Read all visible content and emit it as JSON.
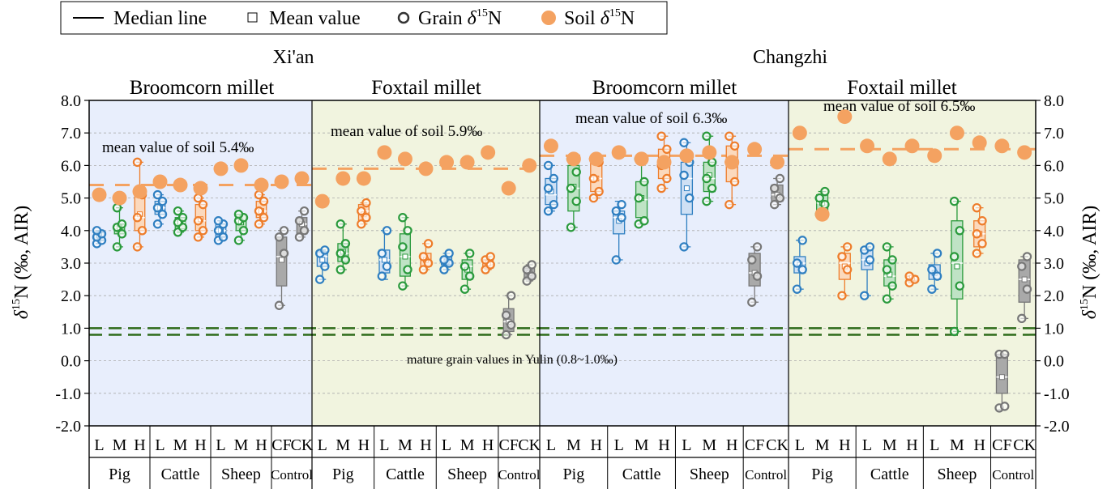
{
  "chart_data": {
    "type": "boxplot",
    "legend": {
      "median": "Median line",
      "mean": "Mean value",
      "grain_prefix": "Grain ",
      "soil_prefix": "Soil ",
      "delta_symbol": "δ",
      "superscript": "15",
      "element": "N"
    },
    "site_labels": [
      "Xi'an",
      "Changzhi"
    ],
    "panel_titles": [
      "Broomcorn millet",
      "Foxtail millet",
      "Broomcorn millet",
      "Foxtail millet"
    ],
    "panel_colors": [
      "#e8eefc",
      "#f1f4df",
      "#e8eefc",
      "#f1f4df"
    ],
    "mean_soil_labels": [
      "mean value of soil 5.4‰",
      "mean value of soil 5.9‰",
      "mean value of soil 6.3‰",
      "mean value of soil 6.5‰"
    ],
    "mean_soil_values": [
      5.4,
      5.9,
      6.3,
      6.5
    ],
    "y_axis": {
      "label_left": "δ15N (‰,  AIR)",
      "label_delta": "δ",
      "label_sup": "15",
      "label_rest": "N (‰,  AIR)",
      "ylim": [
        -2.0,
        8.0
      ],
      "ticks": [
        "8.0",
        "7.0",
        "6.0",
        "5.0",
        "4.0",
        "3.0",
        "2.0",
        "1.0",
        "0.0",
        "-1.0",
        "-2.0"
      ],
      "tick_values": [
        8,
        7,
        6,
        5,
        4,
        3,
        2,
        1,
        0,
        -1,
        -2
      ]
    },
    "yulin_band": [
      0.8,
      1.0
    ],
    "yulin_label": "mature grain values in Yulin (0.8~1.0‰)",
    "level_labels": [
      "L",
      "M",
      "H",
      "L",
      "M",
      "H",
      "L",
      "M",
      "H",
      "CF",
      "CK"
    ],
    "group_labels": [
      "Pig",
      "Cattle",
      "Sheep",
      "Control"
    ],
    "colors": {
      "L": "#2f7fc1",
      "M": "#2a9a3c",
      "H": "#ee7d2b",
      "control": "#777777",
      "soil": "#f4a261",
      "yulin": "#2e6b1a"
    },
    "panels": [
      {
        "name": "Xi'an Broomcorn millet",
        "boxes": [
          {
            "level": "L",
            "q1": 3.7,
            "median": 3.85,
            "q3": 3.95,
            "mean": 3.85,
            "min": 3.6,
            "max": 4.0,
            "points": [
              3.6,
              3.7,
              3.8,
              3.9,
              4.0
            ]
          },
          {
            "level": "M",
            "q1": 3.9,
            "median": 4.1,
            "q3": 4.2,
            "mean": 4.1,
            "min": 3.5,
            "max": 4.7,
            "points": [
              3.5,
              3.9,
              4.1,
              4.2,
              4.7
            ]
          },
          {
            "level": "H",
            "q1": 4.0,
            "median": 4.4,
            "q3": 5.1,
            "mean": 4.5,
            "min": 3.5,
            "max": 6.1,
            "points": [
              3.5,
              4.0,
              4.4,
              5.1,
              6.1
            ]
          },
          {
            "level": "L",
            "q1": 4.5,
            "median": 4.7,
            "q3": 4.9,
            "mean": 4.7,
            "min": 4.2,
            "max": 5.1,
            "points": [
              4.2,
              4.5,
              4.7,
              4.9,
              5.1
            ]
          },
          {
            "level": "M",
            "q1": 4.05,
            "median": 4.25,
            "q3": 4.4,
            "mean": 4.25,
            "min": 3.95,
            "max": 4.6,
            "points": [
              3.95,
              4.1,
              4.25,
              4.4,
              4.6
            ]
          },
          {
            "level": "H",
            "q1": 4.0,
            "median": 4.3,
            "q3": 4.8,
            "mean": 4.35,
            "min": 3.8,
            "max": 5.0,
            "points": [
              3.8,
              4.0,
              4.3,
              4.8,
              5.0
            ]
          },
          {
            "level": "L",
            "q1": 3.8,
            "median": 4.0,
            "q3": 4.2,
            "mean": 4.0,
            "min": 3.7,
            "max": 4.3,
            "points": [
              3.7,
              3.8,
              4.0,
              4.2,
              4.3
            ]
          },
          {
            "level": "M",
            "q1": 4.0,
            "median": 4.3,
            "q3": 4.5,
            "mean": 4.25,
            "min": 3.7,
            "max": 4.5,
            "points": [
              3.7,
              4.0,
              4.3,
              4.4,
              4.5
            ]
          },
          {
            "level": "H",
            "q1": 4.4,
            "median": 4.6,
            "q3": 4.9,
            "mean": 4.6,
            "min": 4.2,
            "max": 5.1,
            "points": [
              4.2,
              4.4,
              4.6,
              4.9,
              5.1
            ]
          },
          {
            "level": "CF",
            "q1": 2.3,
            "median": 3.2,
            "q3": 3.8,
            "mean": 3.1,
            "min": 1.7,
            "max": 4.0,
            "points": [
              1.7,
              3.3,
              3.8,
              4.0
            ]
          },
          {
            "level": "CK",
            "q1": 3.9,
            "median": 4.2,
            "q3": 4.4,
            "mean": 4.2,
            "min": 3.8,
            "max": 4.6,
            "points": [
              3.8,
              4.0,
              4.3,
              4.6
            ]
          }
        ],
        "soil": [
          5.1,
          5.0,
          5.2,
          5.5,
          5.4,
          5.3,
          5.9,
          6.0,
          5.4,
          5.5,
          5.6
        ]
      },
      {
        "name": "Xi'an Foxtail millet",
        "boxes": [
          {
            "level": "L",
            "q1": 2.9,
            "median": 3.2,
            "q3": 3.35,
            "mean": 3.1,
            "min": 2.5,
            "max": 3.4,
            "points": [
              2.5,
              2.9,
              3.3,
              3.4
            ]
          },
          {
            "level": "M",
            "q1": 3.05,
            "median": 3.3,
            "q3": 3.6,
            "mean": 3.35,
            "min": 2.8,
            "max": 4.2,
            "points": [
              2.8,
              3.1,
              3.3,
              3.6,
              4.2
            ]
          },
          {
            "level": "H",
            "q1": 4.3,
            "median": 4.6,
            "q3": 4.8,
            "mean": 4.5,
            "min": 4.2,
            "max": 4.85,
            "points": [
              4.2,
              4.4,
              4.6,
              4.85
            ]
          },
          {
            "level": "L",
            "q1": 2.7,
            "median": 3.1,
            "q3": 3.4,
            "mean": 3.1,
            "min": 2.5,
            "max": 4.0,
            "points": [
              2.6,
              2.9,
              3.3,
              4.0
            ]
          },
          {
            "level": "M",
            "q1": 2.6,
            "median": 3.2,
            "q3": 3.9,
            "mean": 3.2,
            "min": 2.3,
            "max": 4.4,
            "points": [
              2.3,
              2.8,
              3.5,
              4.0,
              4.4
            ]
          },
          {
            "level": "H",
            "q1": 2.9,
            "median": 3.1,
            "q3": 3.3,
            "mean": 3.1,
            "min": 2.8,
            "max": 3.6,
            "points": [
              2.8,
              3.0,
              3.2,
              3.6
            ]
          },
          {
            "level": "L",
            "q1": 2.95,
            "median": 3.1,
            "q3": 3.2,
            "mean": 3.05,
            "min": 2.8,
            "max": 3.3,
            "points": [
              2.8,
              3.0,
              3.1,
              3.3
            ]
          },
          {
            "level": "M",
            "q1": 2.5,
            "median": 2.9,
            "q3": 3.1,
            "mean": 2.8,
            "min": 2.2,
            "max": 3.3,
            "points": [
              2.2,
              2.6,
              2.9,
              3.3
            ]
          },
          {
            "level": "H",
            "q1": 2.85,
            "median": 3.0,
            "q3": 3.1,
            "mean": 3.0,
            "min": 2.8,
            "max": 3.2,
            "points": [
              2.8,
              2.95,
              3.1,
              3.2
            ]
          },
          {
            "level": "CF",
            "q1": 0.9,
            "median": 1.2,
            "q3": 1.6,
            "mean": 1.2,
            "min": 0.8,
            "max": 2.0,
            "points": [
              0.8,
              1.1,
              1.4,
              2.0
            ]
          },
          {
            "level": "CK",
            "q1": 2.5,
            "median": 2.7,
            "q3": 2.85,
            "mean": 2.7,
            "min": 2.45,
            "max": 2.95,
            "points": [
              2.45,
              2.6,
              2.8,
              2.95
            ]
          }
        ],
        "soil": [
          4.9,
          5.6,
          5.6,
          6.4,
          6.2,
          5.9,
          6.1,
          6.1,
          6.4,
          5.3,
          6.0
        ]
      },
      {
        "name": "Changzhi Broomcorn millet",
        "boxes": [
          {
            "level": "L",
            "q1": 4.8,
            "median": 5.1,
            "q3": 5.6,
            "mean": 5.2,
            "min": 4.6,
            "max": 6.0,
            "points": [
              4.6,
              4.8,
              5.3,
              5.6,
              6.0
            ]
          },
          {
            "level": "M",
            "q1": 4.6,
            "median": 5.3,
            "q3": 6.0,
            "mean": 5.35,
            "min": 4.1,
            "max": 6.2,
            "points": [
              4.1,
              4.9,
              5.3,
              5.8,
              6.2
            ]
          },
          {
            "level": "H",
            "q1": 5.2,
            "median": 5.6,
            "q3": 6.1,
            "mean": 5.6,
            "min": 5.0,
            "max": 6.2,
            "points": [
              5.0,
              5.2,
              5.6,
              6.1,
              6.2
            ]
          },
          {
            "level": "L",
            "q1": 3.9,
            "median": 4.4,
            "q3": 4.6,
            "mean": 4.3,
            "min": 3.1,
            "max": 4.9,
            "points": [
              3.1,
              4.4,
              4.6,
              4.8
            ]
          },
          {
            "level": "M",
            "q1": 4.4,
            "median": 4.95,
            "q3": 5.5,
            "mean": 5.0,
            "min": 4.2,
            "max": 6.2,
            "points": [
              4.2,
              4.3,
              5.0,
              5.5,
              6.2
            ]
          },
          {
            "level": "H",
            "q1": 5.6,
            "median": 6.0,
            "q3": 6.5,
            "mean": 6.0,
            "min": 5.3,
            "max": 6.9,
            "points": [
              5.3,
              5.6,
              6.0,
              6.5,
              6.9
            ]
          },
          {
            "level": "L",
            "q1": 4.5,
            "median": 5.6,
            "q3": 6.1,
            "mean": 5.3,
            "min": 3.5,
            "max": 6.7,
            "points": [
              3.5,
              5.0,
              5.7,
              6.1,
              6.7
            ]
          },
          {
            "level": "M",
            "q1": 5.2,
            "median": 5.6,
            "q3": 6.1,
            "mean": 5.7,
            "min": 4.9,
            "max": 6.9,
            "points": [
              4.9,
              5.3,
              5.6,
              6.1,
              6.9
            ]
          },
          {
            "level": "H",
            "q1": 5.5,
            "median": 6.1,
            "q3": 6.6,
            "mean": 6.0,
            "min": 4.8,
            "max": 6.9,
            "points": [
              4.8,
              5.5,
              6.1,
              6.6,
              6.9
            ]
          },
          {
            "level": "CF",
            "q1": 2.3,
            "median": 2.7,
            "q3": 3.3,
            "mean": 2.7,
            "min": 1.8,
            "max": 3.5,
            "points": [
              1.8,
              2.6,
              3.1,
              3.5
            ]
          },
          {
            "level": "CK",
            "q1": 4.9,
            "median": 5.1,
            "q3": 5.4,
            "mean": 5.1,
            "min": 4.8,
            "max": 5.6,
            "points": [
              4.8,
              5.0,
              5.3,
              5.6
            ]
          }
        ],
        "soil": [
          6.6,
          6.2,
          6.2,
          6.4,
          6.2,
          6.1,
          6.3,
          6.4,
          6.1,
          6.5,
          6.1
        ]
      },
      {
        "name": "Changzhi Foxtail millet",
        "boxes": [
          {
            "level": "L",
            "q1": 2.7,
            "median": 3.0,
            "q3": 3.2,
            "mean": 2.95,
            "min": 2.2,
            "max": 3.7,
            "points": [
              2.2,
              2.8,
              3.0,
              3.7
            ]
          },
          {
            "level": "M",
            "q1": 4.6,
            "median": 4.85,
            "q3": 5.1,
            "mean": 4.85,
            "min": 4.5,
            "max": 5.2,
            "points": [
              4.5,
              4.8,
              5.0,
              5.2
            ]
          },
          {
            "level": "H",
            "q1": 2.5,
            "median": 3.0,
            "q3": 3.3,
            "mean": 2.9,
            "min": 2.0,
            "max": 3.5,
            "points": [
              2.0,
              2.8,
              3.2,
              3.5
            ]
          },
          {
            "level": "L",
            "q1": 2.8,
            "median": 3.1,
            "q3": 3.4,
            "mean": 3.0,
            "min": 2.0,
            "max": 3.5,
            "points": [
              2.0,
              3.1,
              3.4,
              3.5
            ]
          },
          {
            "level": "M",
            "q1": 2.3,
            "median": 2.6,
            "q3": 3.1,
            "mean": 2.65,
            "min": 1.9,
            "max": 3.5,
            "points": [
              1.9,
              2.3,
              2.8,
              3.1,
              3.5
            ]
          },
          {
            "level": "H",
            "q1": 2.45,
            "median": 2.55,
            "q3": 2.6,
            "mean": 2.55,
            "min": 2.4,
            "max": 2.6,
            "points": [
              2.4,
              2.5,
              2.6
            ]
          },
          {
            "level": "L",
            "q1": 2.5,
            "median": 2.7,
            "q3": 2.95,
            "mean": 2.7,
            "min": 2.2,
            "max": 3.3,
            "points": [
              2.2,
              2.6,
              2.8,
              3.3
            ]
          },
          {
            "level": "M",
            "q1": 1.9,
            "median": 3.0,
            "q3": 4.3,
            "mean": 2.9,
            "min": 0.9,
            "max": 4.9,
            "points": [
              0.9,
              2.3,
              3.2,
              4.0,
              4.9
            ]
          },
          {
            "level": "H",
            "q1": 3.5,
            "median": 3.9,
            "q3": 4.3,
            "mean": 3.9,
            "min": 3.3,
            "max": 4.7,
            "points": [
              3.3,
              3.6,
              3.9,
              4.3,
              4.7
            ]
          },
          {
            "level": "CF",
            "q1": -1.0,
            "median": -0.5,
            "q3": 0.2,
            "mean": -0.5,
            "min": -1.5,
            "max": 0.2,
            "points": [
              -1.45,
              -1.4,
              0.2,
              0.2
            ]
          },
          {
            "level": "CK",
            "q1": 1.8,
            "median": 2.5,
            "q3": 3.1,
            "mean": 2.5,
            "min": 1.3,
            "max": 3.2,
            "points": [
              1.3,
              2.2,
              2.9,
              3.2
            ]
          }
        ],
        "soil": [
          7.0,
          4.5,
          7.5,
          6.6,
          6.2,
          6.6,
          6.3,
          7.0,
          6.7,
          6.6,
          6.4
        ]
      }
    ]
  }
}
